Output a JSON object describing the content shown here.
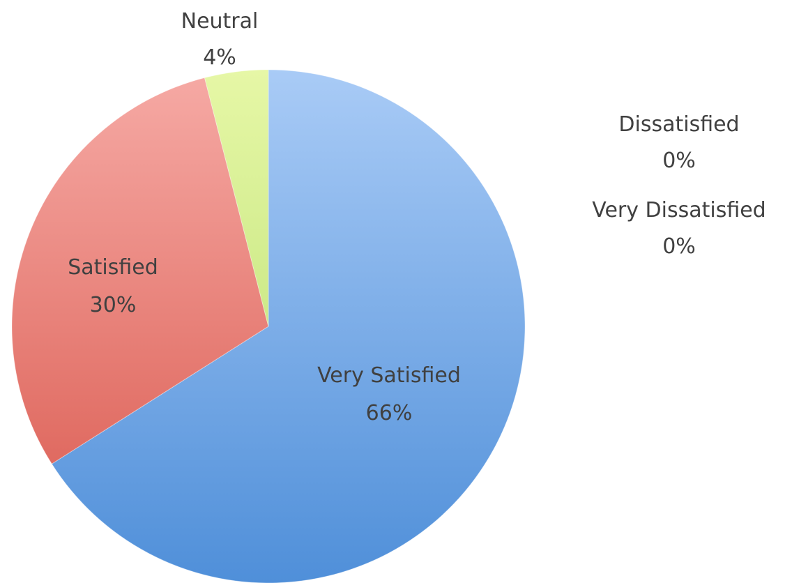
{
  "chart_data": {
    "type": "pie",
    "title": "",
    "categories": [
      "Very Satisfied",
      "Satisfied",
      "Neutral",
      "Dissatisfied",
      "Very Dissatisfied"
    ],
    "values": [
      66,
      30,
      4,
      0,
      0
    ],
    "labels": [
      "66%",
      "30%",
      "4%",
      "0%",
      "0%"
    ],
    "start_angle": "12 o'clock",
    "direction": "clockwise",
    "legend": "none",
    "colors": {
      "Very Satisfied": {
        "light": "#a9cbf6",
        "dark": "#4f8fd9"
      },
      "Satisfied": {
        "light": "#f6aaa5",
        "dark": "#d9574c"
      },
      "Neutral": {
        "light": "#e6f7a6",
        "dark": "#b3dc6a"
      },
      "Dissatisfied": {
        "light": "#c9a8ef",
        "dark": "#8e63c9"
      },
      "Very Dissatisfied": {
        "light": "#9fe1ea",
        "dark": "#42b8c9"
      }
    }
  }
}
